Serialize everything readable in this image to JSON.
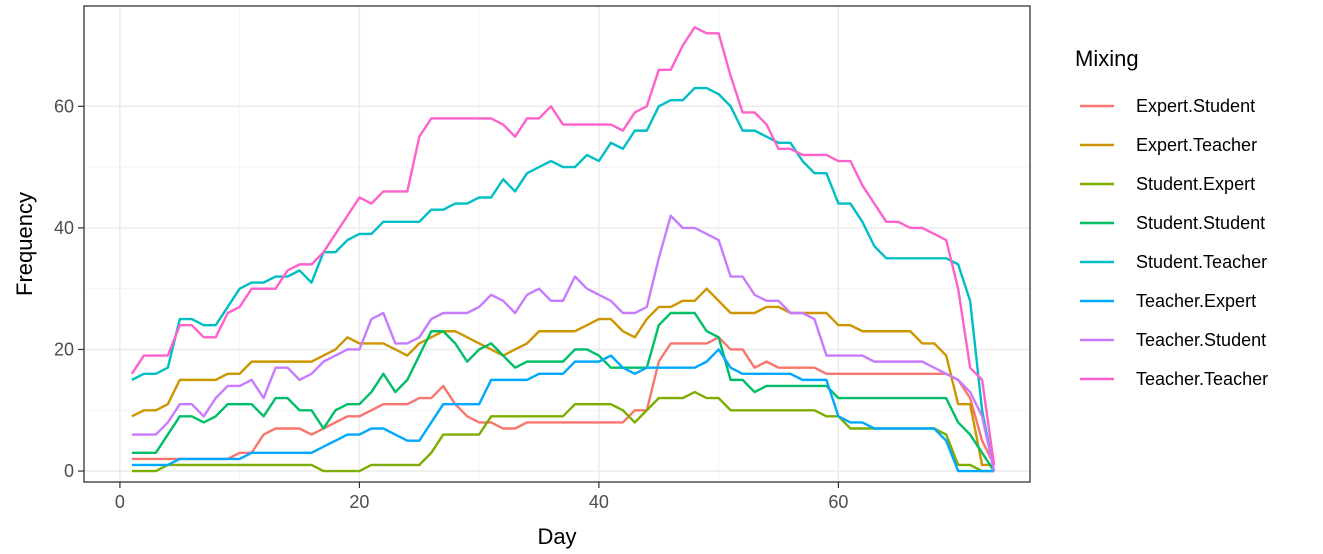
{
  "chart_data": {
    "type": "line",
    "xlabel": "Day",
    "ylabel": "Frequency",
    "xlim": [
      -3,
      76
    ],
    "ylim": [
      -1.8,
      76.5
    ],
    "x_ticks": [
      0,
      20,
      40,
      60
    ],
    "y_ticks": [
      0,
      20,
      40,
      60
    ],
    "x_tick_labels": [
      "0",
      "20",
      "40",
      "60"
    ],
    "y_tick_labels": [
      "0",
      "20",
      "40",
      "60"
    ],
    "grid": true,
    "legend": {
      "title": "Mixing",
      "position": "right"
    },
    "x": [
      1,
      2,
      3,
      4,
      5,
      6,
      7,
      8,
      9,
      10,
      11,
      12,
      13,
      14,
      15,
      16,
      17,
      18,
      19,
      20,
      21,
      22,
      23,
      24,
      25,
      26,
      27,
      28,
      29,
      30,
      31,
      32,
      33,
      34,
      35,
      36,
      37,
      38,
      39,
      40,
      41,
      42,
      43,
      44,
      45,
      46,
      47,
      48,
      49,
      50,
      51,
      52,
      53,
      54,
      55,
      56,
      57,
      58,
      59,
      60,
      61,
      62,
      63,
      64,
      65,
      66,
      67,
      68,
      69,
      70,
      71,
      72,
      73
    ],
    "series": [
      {
        "name": "Expert.Student",
        "color": "#F8766D",
        "values": [
          2,
          2,
          2,
          2,
          2,
          2,
          2,
          2,
          2,
          3,
          3,
          6,
          7,
          7,
          7,
          6,
          7,
          8,
          9,
          9,
          10,
          11,
          11,
          11,
          12,
          12,
          14,
          11,
          9,
          8,
          8,
          7,
          7,
          8,
          8,
          8,
          8,
          8,
          8,
          8,
          8,
          8,
          10,
          10,
          18,
          21,
          21,
          21,
          21,
          22,
          20,
          20,
          17,
          18,
          17,
          17,
          17,
          17,
          16,
          16,
          16,
          16,
          16,
          16,
          16,
          16,
          16,
          16,
          16,
          15,
          12,
          5,
          1
        ]
      },
      {
        "name": "Expert.Teacher",
        "color": "#CD9600",
        "values": [
          9,
          10,
          10,
          11,
          15,
          15,
          15,
          15,
          16,
          16,
          18,
          18,
          18,
          18,
          18,
          18,
          19,
          20,
          22,
          21,
          21,
          21,
          20,
          19,
          21,
          22,
          23,
          23,
          22,
          21,
          20,
          19,
          20,
          21,
          23,
          23,
          23,
          23,
          24,
          25,
          25,
          23,
          22,
          25,
          27,
          27,
          28,
          28,
          30,
          28,
          26,
          26,
          26,
          27,
          27,
          26,
          26,
          26,
          26,
          24,
          24,
          23,
          23,
          23,
          23,
          23,
          21,
          21,
          19,
          11,
          11,
          1,
          1
        ]
      },
      {
        "name": "Student.Expert",
        "color": "#7CAE00",
        "values": [
          0,
          0,
          0,
          1,
          1,
          1,
          1,
          1,
          1,
          1,
          1,
          1,
          1,
          1,
          1,
          1,
          0,
          0,
          0,
          0,
          1,
          1,
          1,
          1,
          1,
          3,
          6,
          6,
          6,
          6,
          9,
          9,
          9,
          9,
          9,
          9,
          9,
          11,
          11,
          11,
          11,
          10,
          8,
          10,
          12,
          12,
          12,
          13,
          12,
          12,
          10,
          10,
          10,
          10,
          10,
          10,
          10,
          10,
          9,
          9,
          7,
          7,
          7,
          7,
          7,
          7,
          7,
          7,
          6,
          1,
          1,
          0,
          0
        ]
      },
      {
        "name": "Student.Student",
        "color": "#00BE67",
        "values": [
          3,
          3,
          3,
          6,
          9,
          9,
          8,
          9,
          11,
          11,
          11,
          9,
          12,
          12,
          10,
          10,
          7,
          10,
          11,
          11,
          13,
          16,
          13,
          15,
          19,
          23,
          23,
          21,
          18,
          20,
          21,
          19,
          17,
          18,
          18,
          18,
          18,
          20,
          20,
          19,
          17,
          17,
          17,
          17,
          24,
          26,
          26,
          26,
          23,
          22,
          15,
          15,
          13,
          14,
          14,
          14,
          14,
          14,
          14,
          12,
          12,
          12,
          12,
          12,
          12,
          12,
          12,
          12,
          12,
          8,
          6,
          3,
          0
        ]
      },
      {
        "name": "Student.Teacher",
        "color": "#00BFC4",
        "values": [
          15,
          16,
          16,
          17,
          25,
          25,
          24,
          24,
          27,
          30,
          31,
          31,
          32,
          32,
          33,
          31,
          36,
          36,
          38,
          39,
          39,
          41,
          41,
          41,
          41,
          43,
          43,
          44,
          44,
          45,
          45,
          48,
          46,
          49,
          50,
          51,
          50,
          50,
          52,
          51,
          54,
          53,
          56,
          56,
          60,
          61,
          61,
          63,
          63,
          62,
          60,
          56,
          56,
          55,
          54,
          54,
          51,
          49,
          49,
          44,
          44,
          41,
          37,
          35,
          35,
          35,
          35,
          35,
          35,
          34,
          28,
          10,
          0
        ]
      },
      {
        "name": "Teacher.Expert",
        "color": "#00A9FF",
        "values": [
          1,
          1,
          1,
          1,
          2,
          2,
          2,
          2,
          2,
          2,
          3,
          3,
          3,
          3,
          3,
          3,
          4,
          5,
          6,
          6,
          7,
          7,
          6,
          5,
          5,
          8,
          11,
          11,
          11,
          11,
          15,
          15,
          15,
          15,
          16,
          16,
          16,
          18,
          18,
          18,
          19,
          17,
          16,
          17,
          17,
          17,
          17,
          17,
          18,
          20,
          17,
          16,
          16,
          16,
          16,
          16,
          15,
          15,
          15,
          9,
          8,
          8,
          7,
          7,
          7,
          7,
          7,
          7,
          5,
          0,
          0,
          0,
          0
        ]
      },
      {
        "name": "Teacher.Student",
        "color": "#C77CFF",
        "values": [
          6,
          6,
          6,
          8,
          11,
          11,
          9,
          12,
          14,
          14,
          15,
          12,
          17,
          17,
          15,
          16,
          18,
          19,
          20,
          20,
          25,
          26,
          21,
          21,
          22,
          25,
          26,
          26,
          26,
          27,
          29,
          28,
          26,
          29,
          30,
          28,
          28,
          32,
          30,
          29,
          28,
          26,
          26,
          27,
          35,
          42,
          40,
          40,
          39,
          38,
          32,
          32,
          29,
          28,
          28,
          26,
          26,
          25,
          19,
          19,
          19,
          19,
          18,
          18,
          18,
          18,
          18,
          17,
          16,
          15,
          13,
          9,
          0
        ]
      },
      {
        "name": "Teacher.Teacher",
        "color": "#FF61CC",
        "values": [
          16,
          19,
          19,
          19,
          24,
          24,
          22,
          22,
          26,
          27,
          30,
          30,
          30,
          33,
          34,
          34,
          36,
          39,
          42,
          45,
          44,
          46,
          46,
          46,
          55,
          58,
          58,
          58,
          58,
          58,
          58,
          57,
          55,
          58,
          58,
          60,
          57,
          57,
          57,
          57,
          57,
          56,
          59,
          60,
          66,
          66,
          70,
          73,
          72,
          72,
          65,
          59,
          59,
          57,
          53,
          53,
          52,
          52,
          52,
          51,
          51,
          47,
          44,
          41,
          41,
          40,
          40,
          39,
          38,
          30,
          17,
          15,
          1
        ]
      }
    ]
  }
}
